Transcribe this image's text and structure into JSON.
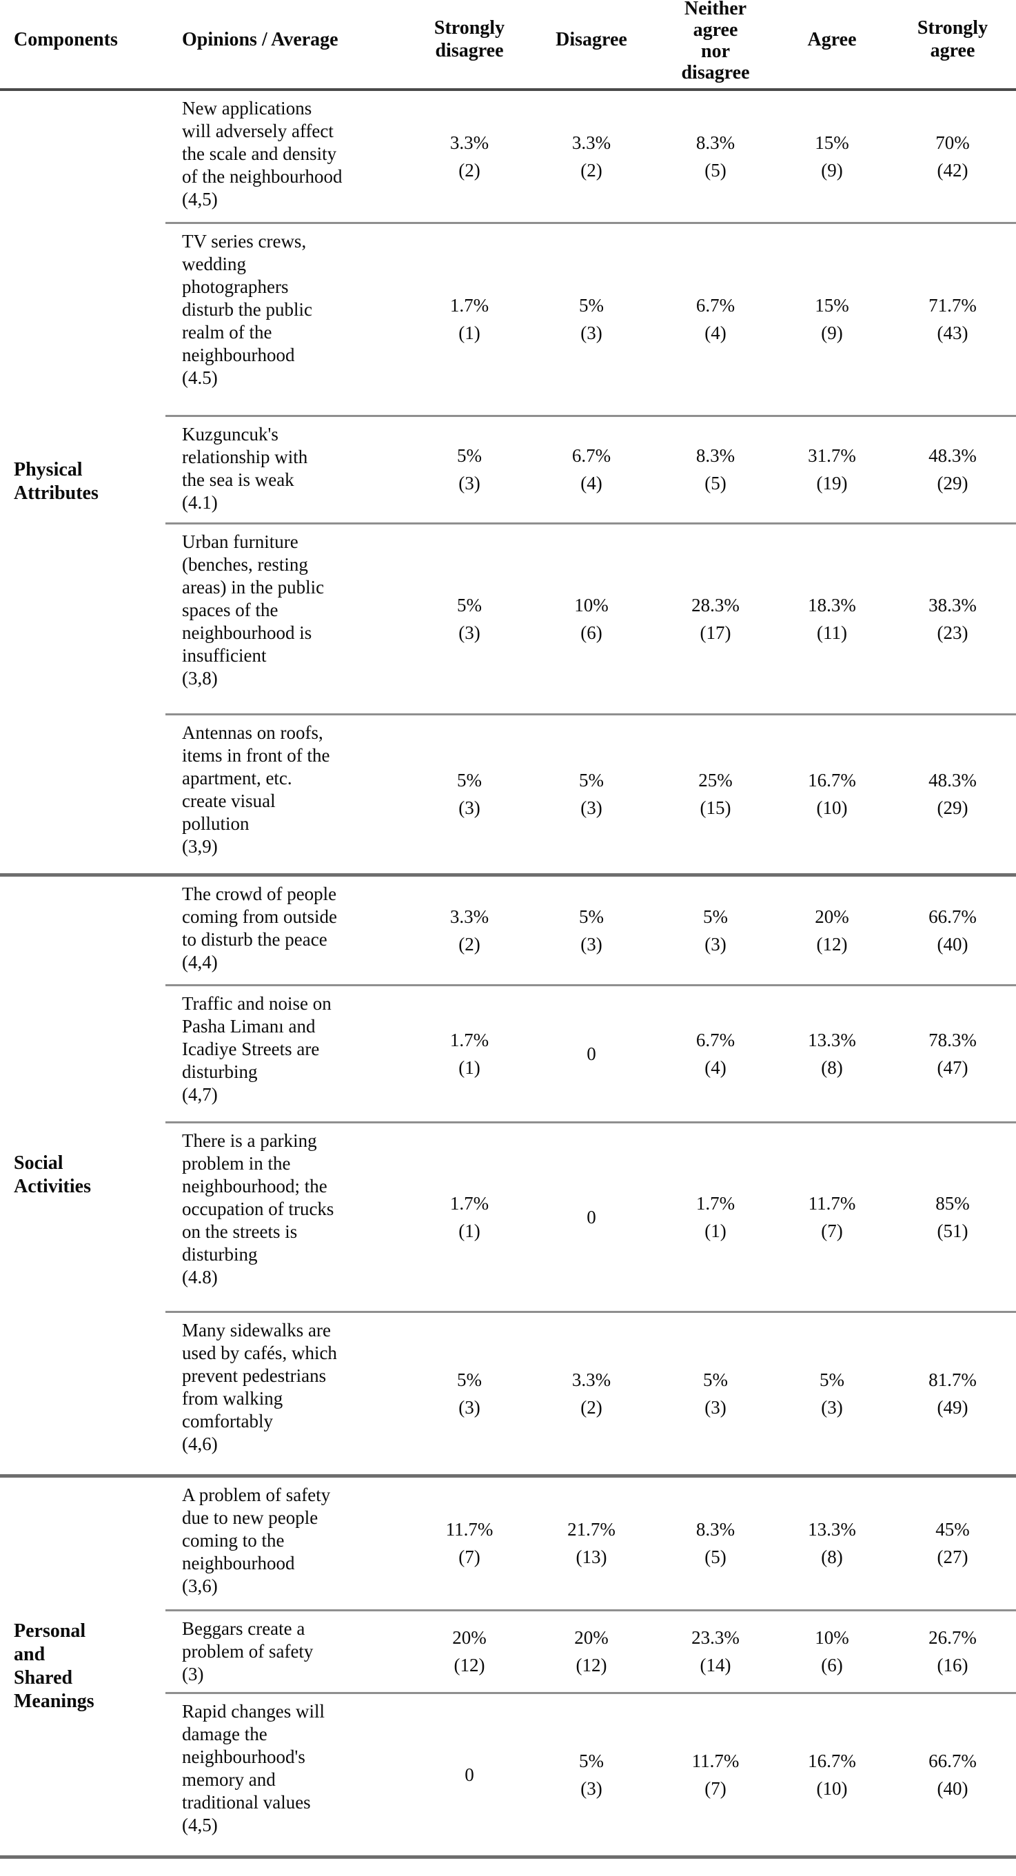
{
  "colors": {
    "background": "#ffffff",
    "text": "#0b0b0b",
    "header_rule": "#4a4a4a",
    "row_rule": "#8f8f8f",
    "section_rule": "#6e6e6e"
  },
  "table": {
    "headers": {
      "components": "Components",
      "opinions": "Opinions / Average",
      "strongly_disagree": "Strongly\ndisagree",
      "disagree": "Disagree",
      "neither": "Neither\nagree\nnor\ndisagree",
      "agree": "Agree",
      "strongly_agree": "Strongly\nagree"
    },
    "groups": [
      {
        "component": "Physical\nAttributes",
        "rows": [
          {
            "opinion": "New applications\nwill adversely affect\nthe scale and density\nof the neighbourhood",
            "avg": "(4,5)",
            "values": [
              {
                "pct": "3.3%",
                "n": "(2)"
              },
              {
                "pct": "3.3%",
                "n": "(2)"
              },
              {
                "pct": "8.3%",
                "n": "(5)"
              },
              {
                "pct": "15%",
                "n": "(9)"
              },
              {
                "pct": "70%",
                "n": "(42)"
              }
            ]
          },
          {
            "opinion": "TV series crews,\nwedding\nphotographers\ndisturb the public\nrealm of the\nneighbourhood",
            "avg": "(4.5)",
            "values": [
              {
                "pct": "1.7%",
                "n": "(1)"
              },
              {
                "pct": "5%",
                "n": "(3)"
              },
              {
                "pct": "6.7%",
                "n": "(4)"
              },
              {
                "pct": "15%",
                "n": "(9)"
              },
              {
                "pct": "71.7%",
                "n": "(43)"
              }
            ]
          },
          {
            "opinion": "Kuzguncuk's\nrelationship with\nthe sea is weak",
            "avg": "(4.1)",
            "values": [
              {
                "pct": "5%",
                "n": "(3)"
              },
              {
                "pct": "6.7%",
                "n": "(4)"
              },
              {
                "pct": "8.3%",
                "n": "(5)"
              },
              {
                "pct": "31.7%",
                "n": "(19)"
              },
              {
                "pct": "48.3%",
                "n": "(29)"
              }
            ]
          },
          {
            "opinion": "Urban furniture\n(benches, resting\nareas) in the public\nspaces of the\nneighbourhood is\ninsufficient",
            "avg": "(3,8)",
            "values": [
              {
                "pct": "5%",
                "n": "(3)"
              },
              {
                "pct": "10%",
                "n": "(6)"
              },
              {
                "pct": "28.3%",
                "n": "(17)"
              },
              {
                "pct": "18.3%",
                "n": "(11)"
              },
              {
                "pct": "38.3%",
                "n": "(23)"
              }
            ]
          },
          {
            "opinion": "Antennas on roofs,\nitems in front of the\napartment, etc.\ncreate visual\npollution",
            "avg": "(3,9)",
            "values": [
              {
                "pct": "5%",
                "n": "(3)"
              },
              {
                "pct": "5%",
                "n": "(3)"
              },
              {
                "pct": "25%",
                "n": "(15)"
              },
              {
                "pct": "16.7%",
                "n": "(10)"
              },
              {
                "pct": "48.3%",
                "n": "(29)"
              }
            ]
          }
        ]
      },
      {
        "component": "Social\nActivities",
        "rows": [
          {
            "opinion": "The crowd of people\ncoming from outside\nto disturb the peace",
            "avg": "(4,4)",
            "values": [
              {
                "pct": "3.3%",
                "n": "(2)"
              },
              {
                "pct": "5%",
                "n": "(3)"
              },
              {
                "pct": "5%",
                "n": "(3)"
              },
              {
                "pct": "20%",
                "n": "(12)"
              },
              {
                "pct": "66.7%",
                "n": "(40)"
              }
            ]
          },
          {
            "opinion": "Traffic and noise on\nPasha Limanı and\nIcadiye Streets are\ndisturbing",
            "avg": "(4,7)",
            "values": [
              {
                "pct": "1.7%",
                "n": "(1)"
              },
              {
                "pct": "0",
                "n": null
              },
              {
                "pct": "6.7%",
                "n": "(4)"
              },
              {
                "pct": "13.3%",
                "n": "(8)"
              },
              {
                "pct": "78.3%",
                "n": "(47)"
              }
            ]
          },
          {
            "opinion": "There is a parking\nproblem in the\nneighbourhood; the\noccupation of trucks\non the streets is\ndisturbing",
            "avg": "(4.8)",
            "values": [
              {
                "pct": "1.7%",
                "n": "(1)"
              },
              {
                "pct": "0",
                "n": null
              },
              {
                "pct": "1.7%",
                "n": "(1)"
              },
              {
                "pct": "11.7%",
                "n": "(7)"
              },
              {
                "pct": "85%",
                "n": "(51)"
              }
            ]
          },
          {
            "opinion": "Many sidewalks are\nused by cafés, which\nprevent pedestrians\nfrom walking\ncomfortably",
            "avg": "(4,6)",
            "values": [
              {
                "pct": "5%",
                "n": "(3)"
              },
              {
                "pct": "3.3%",
                "n": "(2)"
              },
              {
                "pct": "5%",
                "n": "(3)"
              },
              {
                "pct": "5%",
                "n": "(3)"
              },
              {
                "pct": "81.7%",
                "n": "(49)"
              }
            ]
          }
        ]
      },
      {
        "component": "Personal\nand\nShared\nMeanings",
        "rows": [
          {
            "opinion": "A problem of safety\ndue to new people\ncoming to the\nneighbourhood",
            "avg": "(3,6)",
            "values": [
              {
                "pct": "11.7%",
                "n": "(7)"
              },
              {
                "pct": "21.7%",
                "n": "(13)"
              },
              {
                "pct": "8.3%",
                "n": "(5)"
              },
              {
                "pct": "13.3%",
                "n": "(8)"
              },
              {
                "pct": "45%",
                "n": "(27)"
              }
            ]
          },
          {
            "opinion": "Beggars create a\nproblem of safety",
            "avg": "(3)",
            "values": [
              {
                "pct": "20%",
                "n": "(12)"
              },
              {
                "pct": "20%",
                "n": "(12)"
              },
              {
                "pct": "23.3%",
                "n": "(14)"
              },
              {
                "pct": "10%",
                "n": "(6)"
              },
              {
                "pct": "26.7%",
                "n": "(16)"
              }
            ]
          },
          {
            "opinion": "Rapid changes will\ndamage the\nneighbourhood's\nmemory and\ntraditional values",
            "avg": "(4,5)",
            "values": [
              {
                "pct": "0",
                "n": null
              },
              {
                "pct": "5%",
                "n": "(3)"
              },
              {
                "pct": "11.7%",
                "n": "(7)"
              },
              {
                "pct": "16.7%",
                "n": "(10)"
              },
              {
                "pct": "66.7%",
                "n": "(40)"
              }
            ]
          }
        ]
      }
    ]
  }
}
